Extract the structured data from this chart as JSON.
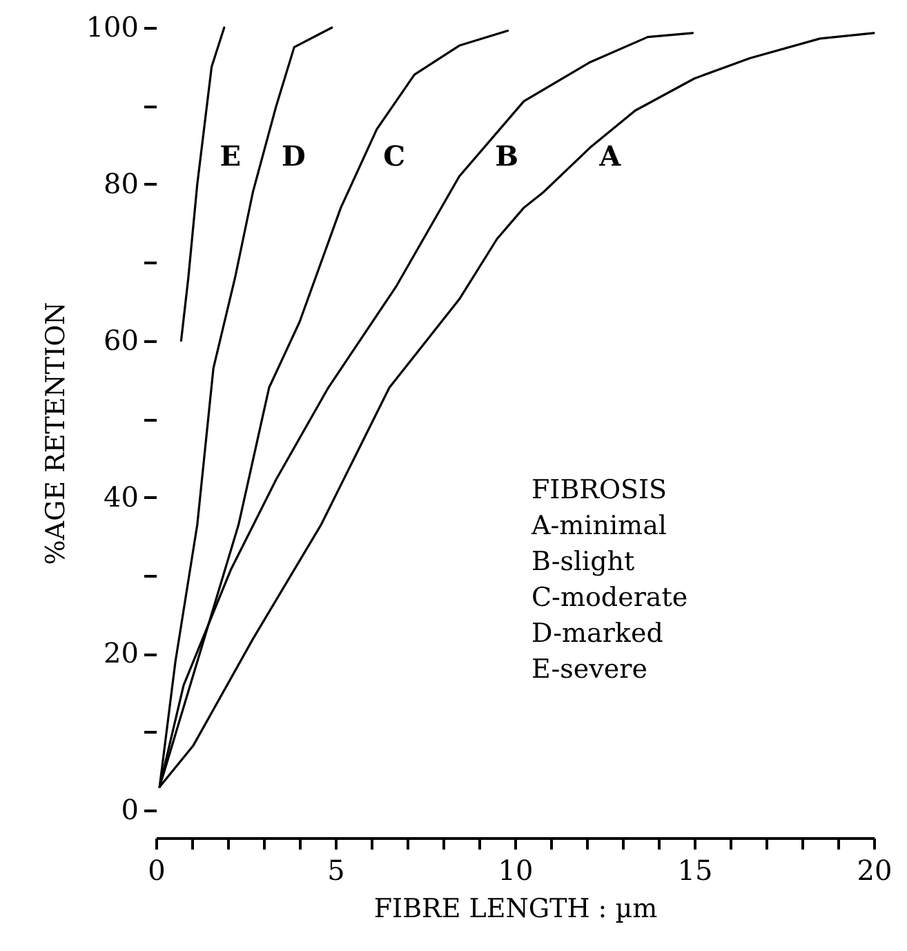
{
  "chart_data": {
    "type": "line",
    "xlabel": "FIBRE LENGTH : µm",
    "ylabel": "%AGE RETENTION",
    "xlim": [
      0,
      20
    ],
    "ylim": [
      -3.5,
      100
    ],
    "xticks": [
      0,
      {
        "value": 1,
        "label": null
      },
      {
        "value": 2,
        "label": null
      },
      {
        "value": 3,
        "label": null
      },
      {
        "value": 4,
        "label": null
      },
      5,
      {
        "value": 6,
        "label": null
      },
      {
        "value": 7,
        "label": null
      },
      {
        "value": 8,
        "label": null
      },
      {
        "value": 9,
        "label": null
      },
      10,
      {
        "value": 11,
        "label": null
      },
      {
        "value": 12,
        "label": null
      },
      {
        "value": 13,
        "label": null
      },
      {
        "value": 14,
        "label": null
      },
      15,
      {
        "value": 16,
        "label": null
      },
      {
        "value": 17,
        "label": null
      },
      {
        "value": 18,
        "label": null
      },
      {
        "value": 19,
        "label": null
      },
      20
    ],
    "yticks": [
      0,
      {
        "value": 10,
        "label": null
      },
      20,
      {
        "value": 30,
        "label": null
      },
      40,
      {
        "value": 50,
        "label": null
      },
      60,
      {
        "value": 70,
        "label": null
      },
      80,
      {
        "value": 90,
        "label": null
      },
      100
    ],
    "grid": false,
    "marker": "none",
    "line_style": "solid",
    "series": [
      {
        "name": "A",
        "color": "#000000",
        "x": [
          0.1,
          1.04,
          2.7,
          4.6,
          6.5,
          8.45,
          9.5,
          10.25,
          10.8,
          12.1,
          13.35,
          15,
          16.55,
          18.5,
          20
        ],
        "values": [
          3,
          8.3,
          21.9,
          36.5,
          54,
          65.3,
          73,
          77,
          79,
          84.7,
          89.4,
          93.5,
          96.1,
          98.6,
          99.3
        ]
      },
      {
        "name": "B",
        "color": "#000000",
        "x": [
          0.1,
          0.77,
          2.08,
          3.35,
          4.8,
          6.7,
          8.45,
          10.25,
          12.1,
          13.7,
          14.95
        ],
        "values": [
          3,
          16,
          30.7,
          42.3,
          54,
          67,
          81,
          90.6,
          95.6,
          98.8,
          99.3
        ]
      },
      {
        "name": "C",
        "color": "#000000",
        "x": [
          0.1,
          1.15,
          2.3,
          3.15,
          4.0,
          5.15,
          6.15,
          7.2,
          8.45,
          9.8
        ],
        "values": [
          3,
          19,
          36.5,
          54,
          62.4,
          77,
          87,
          94,
          97.7,
          99.6
        ]
      },
      {
        "name": "D",
        "color": "#000000",
        "x": [
          0.1,
          0.54,
          1.15,
          1.6,
          2.2,
          2.7,
          3.35,
          3.85,
          4.9
        ],
        "values": [
          3,
          19,
          36.5,
          56.5,
          68,
          79,
          90,
          97.5,
          100
        ]
      },
      {
        "name": "E",
        "color": "#000000",
        "x": [
          0.7,
          0.9,
          1.15,
          1.55,
          1.9
        ],
        "values": [
          60,
          68,
          80,
          95,
          100
        ]
      }
    ],
    "annotations": [
      "FIBROSIS",
      "A-minimal",
      "B-slight",
      "C-moderate",
      "D-marked",
      "E-severe"
    ]
  }
}
